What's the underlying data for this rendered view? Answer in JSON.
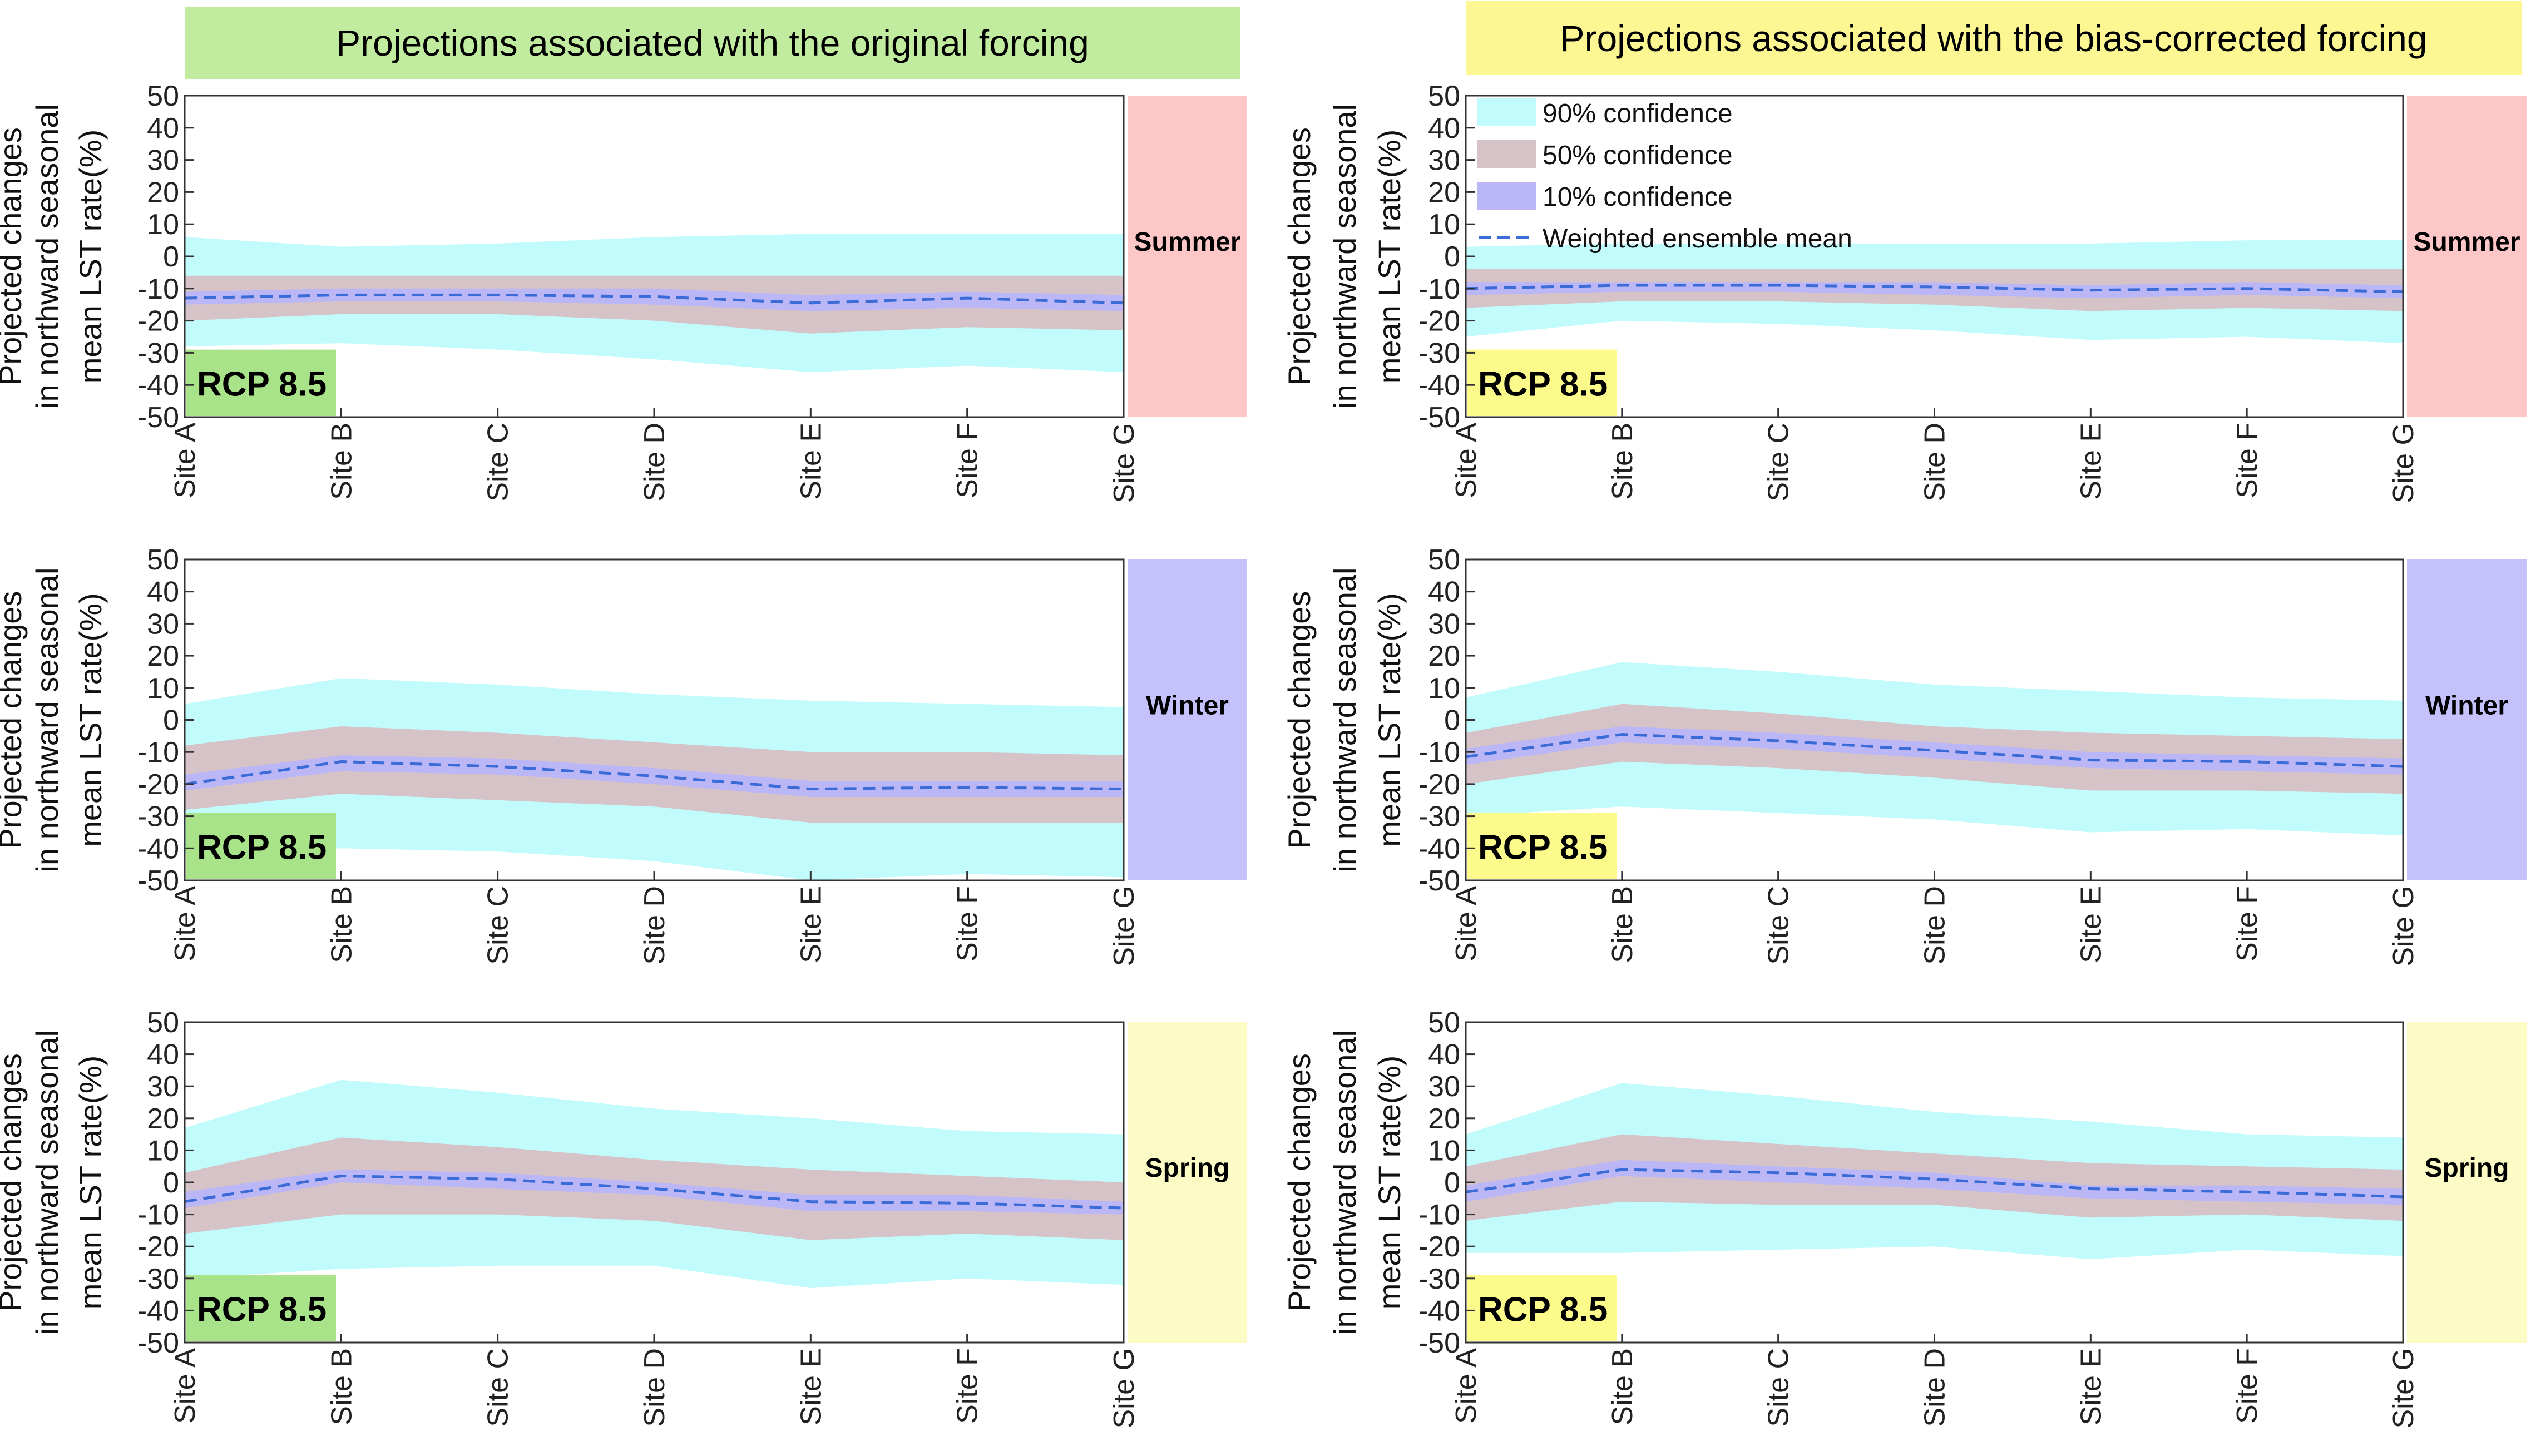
{
  "headers": {
    "left": "Projections associated with the original forcing",
    "right": "Projections associated with the bias-corrected forcing"
  },
  "common": {
    "ylabel_lines": [
      "Projected changes",
      "in northward seasonal",
      "mean LST rate(%)"
    ],
    "yticks": [
      50,
      40,
      30,
      20,
      10,
      0,
      -10,
      -20,
      -30,
      -40,
      -50
    ],
    "categories": [
      "Site A",
      "Site B",
      "Site C",
      "Site D",
      "Site E",
      "Site F",
      "Site G"
    ],
    "scenario": "RCP 8.5"
  },
  "legend": {
    "items": [
      "90% confidence",
      "50% confidence",
      "10% confidence",
      "Weighted ensemble mean"
    ]
  },
  "colors": {
    "ci90": "#c2fbfb",
    "ci50": "#d5c3c7",
    "ci10": "#bbb7f6",
    "mean": "#3b6bd6",
    "summer": "#fdc7c7",
    "winter": "#c5c2fb",
    "spring": "#fcfbc6",
    "rcp_left": "#a9e389",
    "rcp_right": "#fcfa8a"
  },
  "chart_data": [
    {
      "type": "area",
      "id": "orig-summer",
      "column": "original forcing",
      "season": "Summer",
      "categories": [
        "Site A",
        "Site B",
        "Site C",
        "Site D",
        "Site E",
        "Site F",
        "Site G"
      ],
      "ylim": [
        -50,
        50
      ],
      "series": [
        {
          "name": "90% confidence",
          "upper": [
            6,
            3,
            4,
            6,
            7,
            7,
            7
          ],
          "lower": [
            -28,
            -27,
            -29,
            -32,
            -36,
            -34,
            -36
          ]
        },
        {
          "name": "50% confidence",
          "upper": [
            -6,
            -6,
            -6,
            -6,
            -6,
            -6,
            -6
          ],
          "lower": [
            -20,
            -18,
            -18,
            -20,
            -24,
            -22,
            -23
          ]
        },
        {
          "name": "10% confidence",
          "upper": [
            -11,
            -10,
            -10,
            -10,
            -12,
            -11,
            -12
          ],
          "lower": [
            -15,
            -14,
            -14,
            -15,
            -17,
            -16,
            -17
          ]
        },
        {
          "name": "Weighted ensemble mean",
          "values": [
            -13,
            -12,
            -12,
            -12.5,
            -14.5,
            -13,
            -14.5
          ]
        }
      ]
    },
    {
      "type": "area",
      "id": "bias-summer",
      "column": "bias-corrected forcing",
      "season": "Summer",
      "categories": [
        "Site A",
        "Site B",
        "Site C",
        "Site D",
        "Site E",
        "Site F",
        "Site G"
      ],
      "ylim": [
        -50,
        50
      ],
      "series": [
        {
          "name": "90% confidence",
          "upper": [
            3,
            4,
            4,
            4,
            4,
            5,
            5
          ],
          "lower": [
            -25,
            -20,
            -21,
            -23,
            -26,
            -25,
            -27
          ]
        },
        {
          "name": "50% confidence",
          "upper": [
            -4,
            -4,
            -4,
            -4,
            -4,
            -4,
            -4
          ],
          "lower": [
            -16,
            -14,
            -14,
            -15,
            -17,
            -16,
            -17
          ]
        },
        {
          "name": "10% confidence",
          "upper": [
            -8,
            -8,
            -8,
            -8,
            -9,
            -8,
            -9
          ],
          "lower": [
            -12,
            -11,
            -11,
            -12,
            -13,
            -12,
            -13
          ]
        },
        {
          "name": "Weighted ensemble mean",
          "values": [
            -10,
            -9,
            -9,
            -9.5,
            -10.5,
            -10,
            -11
          ]
        }
      ]
    },
    {
      "type": "area",
      "id": "orig-winter",
      "column": "original forcing",
      "season": "Winter",
      "categories": [
        "Site A",
        "Site B",
        "Site C",
        "Site D",
        "Site E",
        "Site F",
        "Site G"
      ],
      "ylim": [
        -50,
        50
      ],
      "series": [
        {
          "name": "90% confidence",
          "upper": [
            5,
            13,
            11,
            8,
            6,
            5,
            4
          ],
          "lower": [
            -42,
            -40,
            -41,
            -44,
            -51,
            -48,
            -49
          ]
        },
        {
          "name": "50% confidence",
          "upper": [
            -8,
            -2,
            -4,
            -7,
            -10,
            -10,
            -11
          ],
          "lower": [
            -28,
            -23,
            -25,
            -27,
            -32,
            -32,
            -32
          ]
        },
        {
          "name": "10% confidence",
          "upper": [
            -17,
            -11,
            -12,
            -15,
            -19,
            -19,
            -19
          ],
          "lower": [
            -22,
            -16,
            -17,
            -20,
            -24,
            -24,
            -24
          ]
        },
        {
          "name": "Weighted ensemble mean",
          "values": [
            -20,
            -13,
            -14.5,
            -17.5,
            -21.5,
            -21,
            -21.5
          ]
        }
      ]
    },
    {
      "type": "area",
      "id": "bias-winter",
      "column": "bias-corrected forcing",
      "season": "Winter",
      "categories": [
        "Site A",
        "Site B",
        "Site C",
        "Site D",
        "Site E",
        "Site F",
        "Site G"
      ],
      "ylim": [
        -50,
        50
      ],
      "series": [
        {
          "name": "90% confidence",
          "upper": [
            7,
            18,
            15,
            11,
            9,
            7,
            6
          ],
          "lower": [
            -30,
            -27,
            -29,
            -31,
            -35,
            -34,
            -36
          ]
        },
        {
          "name": "50% confidence",
          "upper": [
            -4,
            5,
            2,
            -2,
            -4,
            -5,
            -6
          ],
          "lower": [
            -20,
            -13,
            -15,
            -18,
            -22,
            -22,
            -23
          ]
        },
        {
          "name": "10% confidence",
          "upper": [
            -9,
            -2,
            -4,
            -7,
            -10,
            -11,
            -12
          ],
          "lower": [
            -14,
            -7,
            -9,
            -12,
            -15,
            -16,
            -17
          ]
        },
        {
          "name": "Weighted ensemble mean",
          "values": [
            -11.5,
            -4.5,
            -6.5,
            -9.5,
            -12.5,
            -13,
            -14.5
          ]
        }
      ]
    },
    {
      "type": "area",
      "id": "orig-spring",
      "column": "original forcing",
      "season": "Spring",
      "categories": [
        "Site A",
        "Site B",
        "Site C",
        "Site D",
        "Site E",
        "Site F",
        "Site G"
      ],
      "ylim": [
        -50,
        50
      ],
      "series": [
        {
          "name": "90% confidence",
          "upper": [
            17,
            32,
            28,
            23,
            20,
            16,
            15
          ],
          "lower": [
            -30,
            -27,
            -26,
            -26,
            -33,
            -30,
            -32
          ]
        },
        {
          "name": "50% confidence",
          "upper": [
            3,
            14,
            11,
            7,
            4,
            2,
            0
          ],
          "lower": [
            -16,
            -10,
            -10,
            -12,
            -18,
            -16,
            -18
          ]
        },
        {
          "name": "10% confidence",
          "upper": [
            -3,
            4,
            3,
            0,
            -4,
            -4,
            -6
          ],
          "lower": [
            -8,
            0,
            -2,
            -4,
            -9,
            -9,
            -10
          ]
        },
        {
          "name": "Weighted ensemble mean",
          "values": [
            -6,
            2,
            1,
            -2,
            -6,
            -6.5,
            -8
          ]
        }
      ]
    },
    {
      "type": "area",
      "id": "bias-spring",
      "column": "bias-corrected forcing",
      "season": "Spring",
      "categories": [
        "Site A",
        "Site B",
        "Site C",
        "Site D",
        "Site E",
        "Site F",
        "Site G"
      ],
      "ylim": [
        -50,
        50
      ],
      "series": [
        {
          "name": "90% confidence",
          "upper": [
            15,
            31,
            27,
            22,
            19,
            15,
            14
          ],
          "lower": [
            -22,
            -22,
            -21,
            -20,
            -24,
            -21,
            -23
          ]
        },
        {
          "name": "50% confidence",
          "upper": [
            5,
            15,
            12,
            9,
            6,
            5,
            4
          ],
          "lower": [
            -12,
            -6,
            -7,
            -7,
            -11,
            -10,
            -12
          ]
        },
        {
          "name": "10% confidence",
          "upper": [
            -1,
            7,
            5,
            3,
            -1,
            -1,
            -2
          ],
          "lower": [
            -6,
            2,
            0,
            -2,
            -5,
            -6,
            -7
          ]
        },
        {
          "name": "Weighted ensemble mean",
          "values": [
            -3,
            4,
            3,
            1,
            -2,
            -3,
            -4.5
          ]
        }
      ]
    }
  ]
}
